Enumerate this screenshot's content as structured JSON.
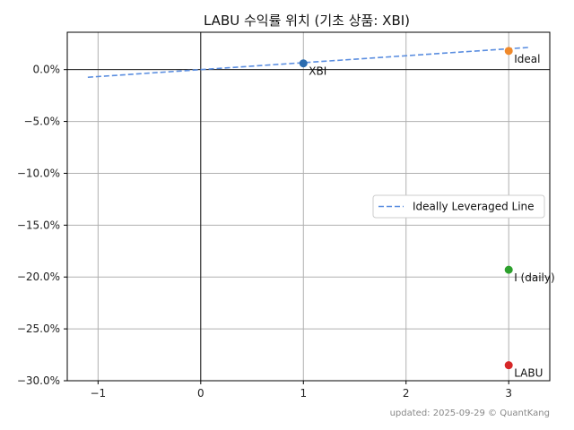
{
  "chart_data": {
    "type": "scatter",
    "title": "LABU 수익률 위치 (기초 상품: XBI)",
    "xlabel": "",
    "ylabel": "",
    "xlim": [
      -1.3,
      3.4
    ],
    "ylim": [
      -30.0,
      3.6
    ],
    "x_ticks": [
      -1,
      0,
      1,
      2,
      3
    ],
    "x_tick_labels": [
      "−1",
      "0",
      "1",
      "2",
      "3"
    ],
    "y_ticks": [
      0,
      -5,
      -10,
      -15,
      -20,
      -25,
      -30
    ],
    "y_tick_labels": [
      "0.0%",
      "−5.0%",
      "−10.0%",
      "−15.0%",
      "−20.0%",
      "−25.0%",
      "−30.0%"
    ],
    "grid": true,
    "legend_position": "center-right",
    "line": {
      "name": "Ideally Leveraged Line",
      "style": "dashed",
      "color": "#5b8ee0",
      "x": [
        -1.1,
        3.2
      ],
      "y": [
        -0.74,
        2.14
      ]
    },
    "points": [
      {
        "label": "XBI",
        "x": 1,
        "y": 0.6,
        "color": "#2b6cb0"
      },
      {
        "label": "Ideal",
        "x": 3,
        "y": 1.8,
        "color": "#f0892a"
      },
      {
        "label": "I (daily)",
        "x": 3,
        "y": -19.3,
        "color": "#2ca02c"
      },
      {
        "label": "LABU",
        "x": 3,
        "y": -28.5,
        "color": "#d62728"
      }
    ]
  },
  "footer": "updated: 2025-09-29 © QuantKang"
}
